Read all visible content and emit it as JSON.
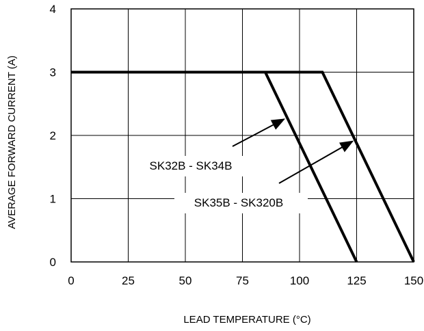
{
  "chart_data": {
    "type": "line",
    "title": "",
    "xlabel": "LEAD TEMPERATURE (°C)",
    "ylabel": "AVERAGE FORWARD CURRENT (A)",
    "xlim": [
      0,
      150
    ],
    "ylim": [
      0,
      4
    ],
    "xticks": [
      0,
      25,
      50,
      75,
      100,
      125,
      150
    ],
    "yticks": [
      0,
      1,
      2,
      3,
      4
    ],
    "grid": true,
    "series": [
      {
        "name": "SK32B - SK34B",
        "x": [
          0,
          85,
          125
        ],
        "y": [
          3,
          3,
          0
        ]
      },
      {
        "name": "SK35B - SK320B",
        "x": [
          0,
          110,
          150
        ],
        "y": [
          3,
          3,
          0
        ]
      }
    ],
    "annotations": [
      {
        "text": "SK32B - SK34B",
        "target_series": 0,
        "point": [
          95,
          2.3
        ]
      },
      {
        "text": "SK35B - SK320B",
        "target_series": 1,
        "point": [
          125,
          1.95
        ]
      }
    ],
    "line_color": "#000000",
    "grid_color": "#000000"
  }
}
